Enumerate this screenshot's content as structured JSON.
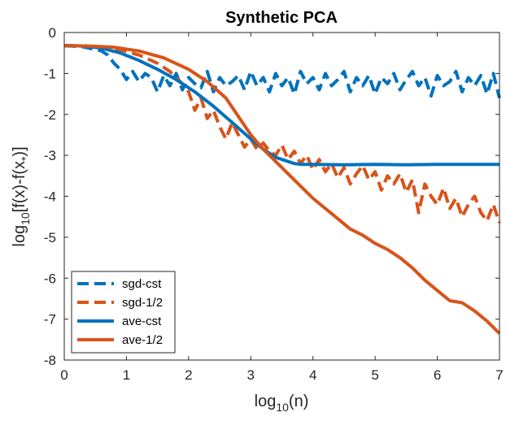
{
  "chart_data": {
    "type": "line",
    "title": "Synthetic PCA",
    "xlabel": {
      "base": "log",
      "sub": "10",
      "rest": "(n)"
    },
    "ylabel": {
      "base": "log",
      "sub": "10",
      "rest": "[f(x)-f(x",
      "sub2": "*",
      "rest2": ")]"
    },
    "xlim": [
      0,
      7
    ],
    "ylim": [
      -8,
      0
    ],
    "xticks": [
      0,
      1,
      2,
      3,
      4,
      5,
      6,
      7
    ],
    "yticks": [
      0,
      -1,
      -2,
      -3,
      -4,
      -5,
      -6,
      -7,
      -8
    ],
    "xtick_labels": [
      "0",
      "1",
      "2",
      "3",
      "4",
      "5",
      "6",
      "7"
    ],
    "ytick_labels": [
      "0",
      "-1",
      "-2",
      "-3",
      "-4",
      "-5",
      "-6",
      "-7",
      "-8"
    ],
    "grid": false,
    "legend_position": "bottom-left",
    "colors": {
      "blue": "#0072BD",
      "orange": "#D95319",
      "axis": "#262626"
    },
    "series": [
      {
        "name": "sgd-cst",
        "style": "dashed",
        "color": "#0072BD",
        "x": [
          0.0,
          0.3,
          0.6,
          0.7,
          0.8,
          0.9,
          1.0,
          1.1,
          1.2,
          1.3,
          1.4,
          1.5,
          1.6,
          1.7,
          1.8,
          1.9,
          2.0,
          2.1,
          2.2,
          2.3,
          2.4,
          2.5,
          2.6,
          2.7,
          2.8,
          2.9,
          3.0,
          3.1,
          3.2,
          3.3,
          3.4,
          3.5,
          3.6,
          3.7,
          3.8,
          3.9,
          4.0,
          4.1,
          4.2,
          4.3,
          4.4,
          4.5,
          4.6,
          4.7,
          4.8,
          4.9,
          5.0,
          5.1,
          5.2,
          5.3,
          5.4,
          5.5,
          5.6,
          5.7,
          5.8,
          5.9,
          6.0,
          6.1,
          6.2,
          6.3,
          6.4,
          6.5,
          6.6,
          6.7,
          6.8,
          6.9,
          7.0
        ],
        "y": [
          -0.32,
          -0.35,
          -0.45,
          -0.55,
          -0.75,
          -0.9,
          -1.15,
          -0.95,
          -1.2,
          -1.0,
          -1.1,
          -1.45,
          -1.05,
          -1.3,
          -1.0,
          -1.4,
          -1.1,
          -1.25,
          -1.35,
          -0.95,
          -1.45,
          -1.1,
          -1.3,
          -1.2,
          -1.05,
          -1.4,
          -0.95,
          -1.3,
          -1.1,
          -1.45,
          -1.0,
          -1.3,
          -1.1,
          -1.5,
          -0.95,
          -1.25,
          -1.1,
          -1.4,
          -1.0,
          -1.3,
          -1.15,
          -0.95,
          -1.45,
          -1.1,
          -1.3,
          -1.05,
          -1.5,
          -1.1,
          -1.25,
          -1.0,
          -1.4,
          -1.15,
          -0.95,
          -1.3,
          -1.1,
          -1.55,
          -1.05,
          -1.3,
          -1.2,
          -0.95,
          -1.45,
          -1.1,
          -1.3,
          -1.05,
          -1.5,
          -1.0,
          -1.6
        ]
      },
      {
        "name": "sgd-1/2",
        "style": "dashed",
        "color": "#D95319",
        "x": [
          0.0,
          0.3,
          0.6,
          0.9,
          1.2,
          1.5,
          1.7,
          1.9,
          2.0,
          2.1,
          2.2,
          2.3,
          2.4,
          2.5,
          2.6,
          2.7,
          2.8,
          2.9,
          3.0,
          3.1,
          3.2,
          3.3,
          3.4,
          3.5,
          3.6,
          3.7,
          3.8,
          3.9,
          4.0,
          4.1,
          4.2,
          4.3,
          4.4,
          4.5,
          4.6,
          4.7,
          4.8,
          4.9,
          5.0,
          5.1,
          5.2,
          5.3,
          5.4,
          5.5,
          5.6,
          5.7,
          5.8,
          5.9,
          6.0,
          6.1,
          6.2,
          6.3,
          6.4,
          6.5,
          6.6,
          6.7,
          6.8,
          6.9,
          7.0
        ],
        "y": [
          -0.32,
          -0.33,
          -0.36,
          -0.42,
          -0.55,
          -0.75,
          -0.95,
          -1.25,
          -1.45,
          -1.9,
          -1.6,
          -2.1,
          -1.9,
          -2.3,
          -2.6,
          -2.2,
          -2.5,
          -2.8,
          -2.6,
          -2.85,
          -2.7,
          -2.9,
          -3.0,
          -2.75,
          -3.1,
          -2.9,
          -3.2,
          -3.0,
          -3.35,
          -3.1,
          -3.4,
          -3.2,
          -3.55,
          -3.3,
          -3.7,
          -3.45,
          -3.25,
          -3.6,
          -3.4,
          -3.85,
          -3.5,
          -3.7,
          -3.45,
          -3.9,
          -3.6,
          -4.4,
          -3.7,
          -4.0,
          -4.2,
          -3.8,
          -4.3,
          -4.05,
          -4.5,
          -4.2,
          -4.0,
          -4.4,
          -4.6,
          -4.2,
          -4.65
        ]
      },
      {
        "name": "ave-cst",
        "style": "solid",
        "color": "#0072BD",
        "x": [
          0.0,
          0.3,
          0.6,
          0.9,
          1.2,
          1.5,
          1.8,
          2.1,
          2.4,
          2.7,
          3.0,
          3.2,
          3.4,
          3.6,
          3.7,
          3.8,
          4.0,
          4.5,
          5.0,
          5.5,
          6.0,
          6.5,
          7.0
        ],
        "y": [
          -0.32,
          -0.33,
          -0.38,
          -0.5,
          -0.68,
          -0.9,
          -1.15,
          -1.45,
          -1.8,
          -2.2,
          -2.6,
          -2.85,
          -3.05,
          -3.15,
          -3.2,
          -3.22,
          -3.22,
          -3.23,
          -3.22,
          -3.23,
          -3.22,
          -3.22,
          -3.22
        ]
      },
      {
        "name": "ave-1/2",
        "style": "solid",
        "color": "#D95319",
        "x": [
          0.0,
          0.4,
          0.8,
          1.2,
          1.6,
          2.0,
          2.3,
          2.6,
          2.8,
          3.0,
          3.2,
          3.4,
          3.6,
          3.8,
          4.0,
          4.2,
          4.4,
          4.6,
          4.8,
          5.0,
          5.2,
          5.4,
          5.6,
          5.8,
          6.0,
          6.2,
          6.4,
          6.6,
          6.8,
          7.0
        ],
        "y": [
          -0.32,
          -0.33,
          -0.36,
          -0.45,
          -0.62,
          -0.9,
          -1.2,
          -1.6,
          -2.05,
          -2.5,
          -2.85,
          -3.15,
          -3.45,
          -3.75,
          -4.05,
          -4.3,
          -4.55,
          -4.8,
          -4.95,
          -5.15,
          -5.3,
          -5.5,
          -5.75,
          -6.05,
          -6.3,
          -6.55,
          -6.6,
          -6.8,
          -7.05,
          -7.35
        ]
      }
    ]
  }
}
